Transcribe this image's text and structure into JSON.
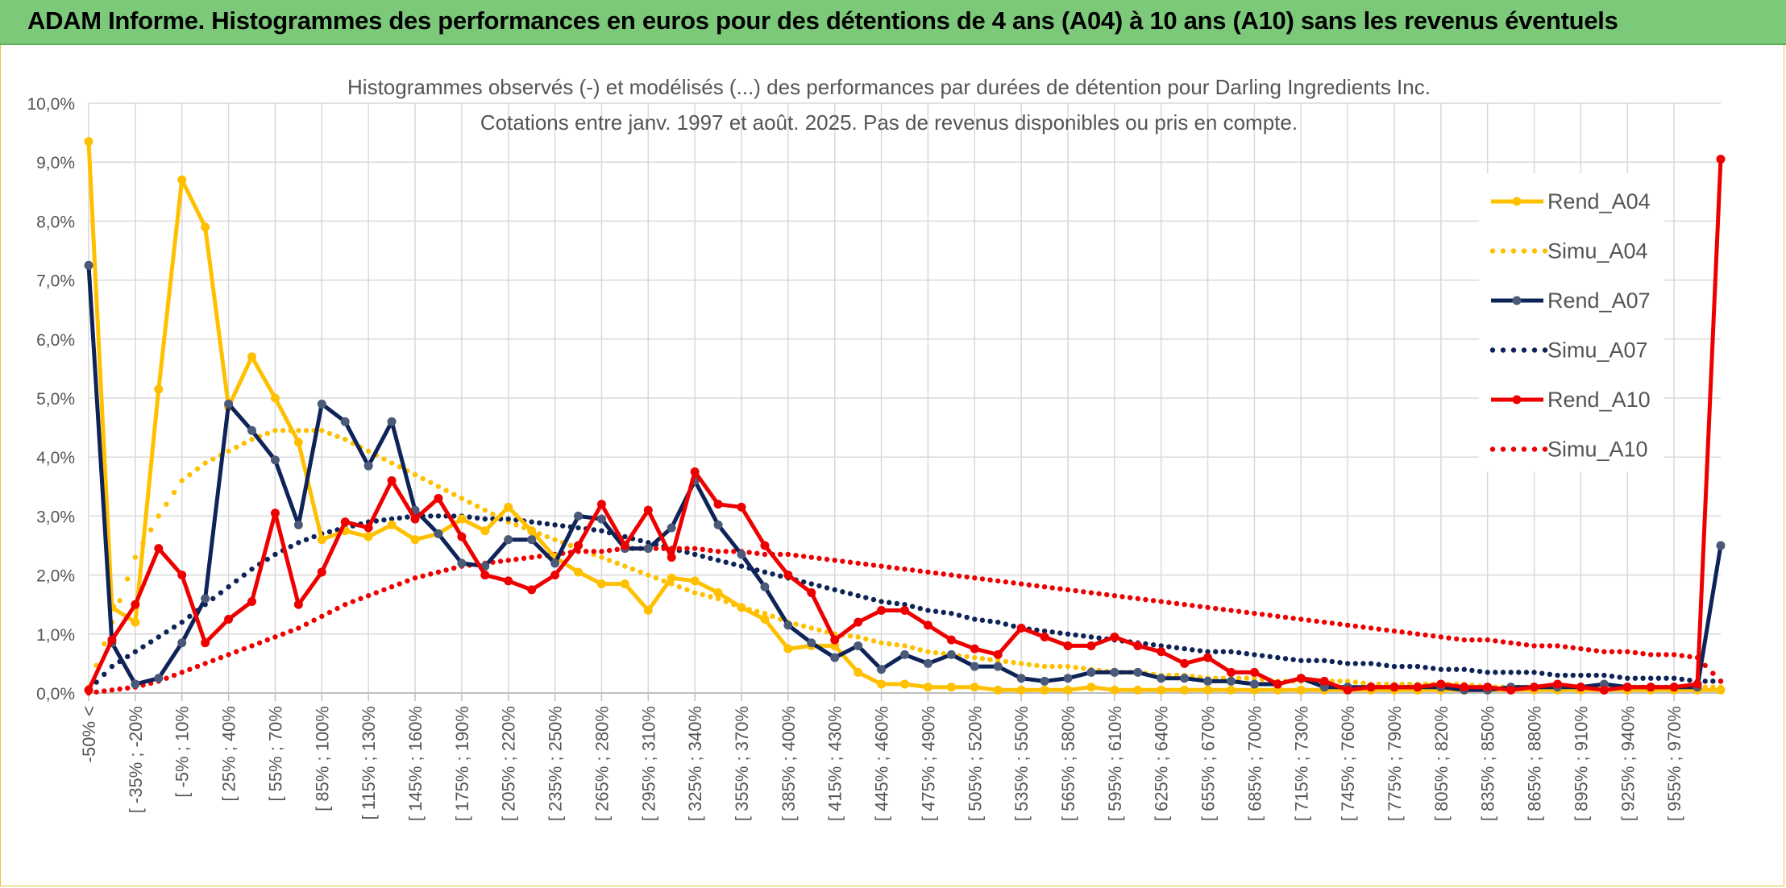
{
  "banner": {
    "title": "ADAM Informe. Histogrammes des performances en euros pour des détentions de 4 ans (A04) à 10 ans (A10) sans les revenus éventuels"
  },
  "colors": {
    "banner_bg": "#7dc97a",
    "A04": "#ffc000",
    "A07": "#0e2357",
    "A10": "#ee0000",
    "grid": "#d9d9d9"
  },
  "chart_data": {
    "type": "line",
    "title": "Histogrammes observés (-) et modélisés (...) des performances par durées de détention pour Darling Ingredients Inc.",
    "subtitle": "Cotations entre janv. 1997 et août. 2025. Pas de revenus disponibles ou pris en compte.",
    "xlabel": "",
    "ylabel": "",
    "ylim": [
      0,
      10
    ],
    "y_ticks": [
      "0,0%",
      "1,0%",
      "2,0%",
      "3,0%",
      "4,0%",
      "5,0%",
      "6,0%",
      "7,0%",
      "8,0%",
      "9,0%",
      "10,0%"
    ],
    "grid": true,
    "legend_position": "top-right",
    "x_tick_labels": [
      "-50% <",
      "[ -35% ; -20%",
      "[ -5% ; 10%",
      "[ 25% ; 40%",
      "[ 55% ; 70%",
      "[ 85% ; 100%",
      "[ 115% ; 130%",
      "[ 145% ; 160%",
      "[ 175% ; 190%",
      "[ 205% ; 220%",
      "[ 235% ; 250%",
      "[ 265% ; 280%",
      "[ 295% ; 310%",
      "[ 325% ; 340%",
      "[ 355% ; 370%",
      "[ 385% ; 400%",
      "[ 415% ; 430%",
      "[ 445% ; 460%",
      "[ 475% ; 490%",
      "[ 505% ; 520%",
      "[ 535% ; 550%",
      "[ 565% ; 580%",
      "[ 595% ; 610%",
      "[ 625% ; 640%",
      "[ 655% ; 670%",
      "[ 685% ; 700%",
      "[ 715% ; 730%",
      "[ 745% ; 760%",
      "[ 775% ; 790%",
      "[ 805% ; 820%",
      "[ 835% ; 850%",
      "[ 865% ; 880%",
      "[ 895% ; 910%",
      "[ 925% ; 940%",
      "[ 955% ; 970%"
    ],
    "series": [
      {
        "name": "Rend_A04",
        "style": "solid",
        "values": [
          9.35,
          1.45,
          1.2,
          5.15,
          8.7,
          7.9,
          4.85,
          5.7,
          5.0,
          4.25,
          2.6,
          2.75,
          2.65,
          2.85,
          2.6,
          2.7,
          2.95,
          2.75,
          3.15,
          2.75,
          2.3,
          2.05,
          1.85,
          1.85,
          1.4,
          1.95,
          1.9,
          1.7,
          1.45,
          1.25,
          0.75,
          0.8,
          0.8,
          0.35,
          0.15,
          0.15,
          0.1,
          0.1,
          0.1,
          0.05,
          0.05,
          0.05,
          0.05,
          0.1,
          0.05,
          0.05,
          0.05,
          0.05,
          0.05,
          0.05,
          0.05,
          0.05,
          0.05,
          0.05,
          0.05,
          0.05,
          0.05,
          0.05,
          0.05,
          0.05,
          0.05,
          0.05,
          0.05,
          0.05,
          0.05,
          0.05,
          0.05,
          0.05,
          0.05,
          0.05,
          0.05
        ]
      },
      {
        "name": "Simu_A04",
        "style": "dotted",
        "values": [
          0.1,
          1.2,
          2.3,
          3.0,
          3.6,
          3.9,
          4.1,
          4.3,
          4.45,
          4.45,
          4.45,
          4.3,
          4.1,
          3.9,
          3.7,
          3.5,
          3.3,
          3.1,
          2.9,
          2.75,
          2.6,
          2.45,
          2.3,
          2.15,
          2.0,
          1.85,
          1.7,
          1.6,
          1.45,
          1.35,
          1.2,
          1.1,
          1.0,
          0.95,
          0.85,
          0.8,
          0.7,
          0.65,
          0.6,
          0.55,
          0.5,
          0.45,
          0.45,
          0.4,
          0.35,
          0.35,
          0.3,
          0.3,
          0.25,
          0.25,
          0.25,
          0.2,
          0.2,
          0.2,
          0.2,
          0.15,
          0.15,
          0.15,
          0.15,
          0.15,
          0.1,
          0.1,
          0.1,
          0.1,
          0.1,
          0.1,
          0.1,
          0.1,
          0.1,
          0.1,
          0.1
        ]
      },
      {
        "name": "Rend_A07",
        "style": "solid",
        "values": [
          7.25,
          0.85,
          0.15,
          0.25,
          0.85,
          1.6,
          4.9,
          4.45,
          3.95,
          2.85,
          4.9,
          4.6,
          3.85,
          4.6,
          3.1,
          2.7,
          2.2,
          2.15,
          2.6,
          2.6,
          2.2,
          3.0,
          2.95,
          2.45,
          2.45,
          2.8,
          3.6,
          2.85,
          2.35,
          1.8,
          1.15,
          0.85,
          0.6,
          0.8,
          0.4,
          0.65,
          0.5,
          0.65,
          0.45,
          0.45,
          0.25,
          0.2,
          0.25,
          0.35,
          0.35,
          0.35,
          0.25,
          0.25,
          0.2,
          0.2,
          0.15,
          0.15,
          0.25,
          0.1,
          0.1,
          0.1,
          0.1,
          0.1,
          0.1,
          0.05,
          0.05,
          0.1,
          0.1,
          0.1,
          0.1,
          0.15,
          0.1,
          0.1,
          0.1,
          0.1,
          2.5
        ]
      },
      {
        "name": "Simu_A07",
        "style": "dotted",
        "values": [
          0.05,
          0.45,
          0.7,
          0.95,
          1.2,
          1.5,
          1.8,
          2.1,
          2.35,
          2.55,
          2.7,
          2.8,
          2.9,
          2.95,
          3.0,
          3.0,
          3.0,
          2.95,
          2.95,
          2.9,
          2.85,
          2.8,
          2.75,
          2.65,
          2.55,
          2.45,
          2.35,
          2.25,
          2.15,
          2.05,
          1.95,
          1.85,
          1.75,
          1.65,
          1.55,
          1.5,
          1.4,
          1.35,
          1.25,
          1.2,
          1.1,
          1.05,
          1.0,
          0.95,
          0.9,
          0.85,
          0.8,
          0.75,
          0.7,
          0.7,
          0.65,
          0.6,
          0.55,
          0.55,
          0.5,
          0.5,
          0.45,
          0.45,
          0.4,
          0.4,
          0.35,
          0.35,
          0.35,
          0.3,
          0.3,
          0.3,
          0.25,
          0.25,
          0.25,
          0.2,
          0.2
        ]
      },
      {
        "name": "Rend_A10",
        "style": "solid",
        "values": [
          0.05,
          0.9,
          1.5,
          2.45,
          2.0,
          0.85,
          1.25,
          1.55,
          3.05,
          1.5,
          2.05,
          2.9,
          2.8,
          3.6,
          2.95,
          3.3,
          2.65,
          2.0,
          1.9,
          1.75,
          2.0,
          2.5,
          3.2,
          2.5,
          3.1,
          2.3,
          3.75,
          3.2,
          3.15,
          2.5,
          2.0,
          1.7,
          0.9,
          1.2,
          1.4,
          1.4,
          1.15,
          0.9,
          0.75,
          0.65,
          1.1,
          0.95,
          0.8,
          0.8,
          0.95,
          0.8,
          0.7,
          0.5,
          0.6,
          0.35,
          0.35,
          0.15,
          0.25,
          0.2,
          0.05,
          0.1,
          0.1,
          0.1,
          0.15,
          0.1,
          0.1,
          0.05,
          0.1,
          0.15,
          0.1,
          0.05,
          0.1,
          0.1,
          0.1,
          0.15,
          9.05
        ]
      },
      {
        "name": "Simu_A10",
        "style": "dotted",
        "values": [
          0.0,
          0.05,
          0.1,
          0.2,
          0.35,
          0.5,
          0.65,
          0.8,
          0.95,
          1.1,
          1.3,
          1.5,
          1.65,
          1.8,
          1.95,
          2.05,
          2.15,
          2.2,
          2.25,
          2.3,
          2.35,
          2.4,
          2.4,
          2.45,
          2.45,
          2.45,
          2.45,
          2.4,
          2.4,
          2.35,
          2.35,
          2.3,
          2.25,
          2.2,
          2.15,
          2.1,
          2.05,
          2.0,
          1.95,
          1.9,
          1.85,
          1.8,
          1.75,
          1.7,
          1.65,
          1.6,
          1.55,
          1.5,
          1.45,
          1.4,
          1.35,
          1.3,
          1.25,
          1.2,
          1.15,
          1.1,
          1.05,
          1.0,
          0.95,
          0.9,
          0.9,
          0.85,
          0.8,
          0.8,
          0.75,
          0.7,
          0.7,
          0.65,
          0.65,
          0.6,
          0.2
        ]
      }
    ]
  }
}
